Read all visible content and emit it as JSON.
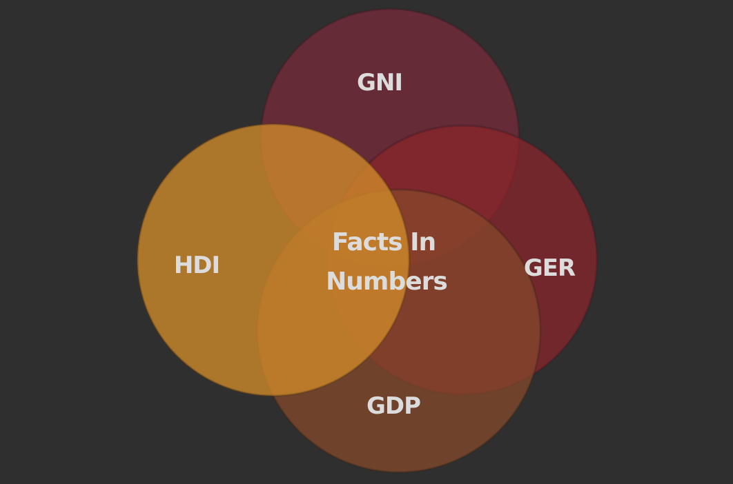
{
  "diagram": {
    "type": "venn",
    "center_label_lines": [
      "Facts In",
      "Numbers"
    ],
    "sets": [
      {
        "id": "gni",
        "label": "GNI",
        "color": "#7a2a3a"
      },
      {
        "id": "ger",
        "label": "GER",
        "color": "#8a242a"
      },
      {
        "id": "gdp",
        "label": "GDP",
        "color": "#864a2a"
      },
      {
        "id": "hdi",
        "label": "HDI",
        "color": "#d08a2a"
      }
    ]
  }
}
